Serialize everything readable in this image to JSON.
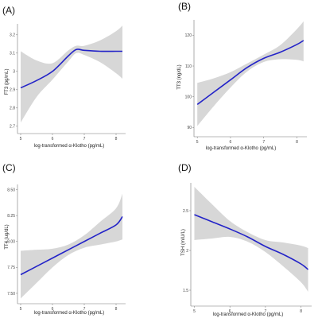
{
  "chart_data": [
    {
      "type": "line",
      "panel": "(A)",
      "xlabel": "log-transformed α-Klotho (pg/mL)",
      "ylabel": "FT3 (pg/mL)",
      "x_ticks": [
        5,
        6,
        7,
        8
      ],
      "y_ticks": [
        2.7,
        2.8,
        2.9,
        3.0,
        3.1,
        3.2
      ],
      "xlim": [
        4.9,
        8.3
      ],
      "ylim": [
        2.66,
        3.26
      ],
      "series": [
        {
          "x": [
            5.0,
            5.5,
            6.0,
            6.5,
            6.75,
            7.0,
            7.5,
            8.0,
            8.2
          ],
          "y": [
            2.91,
            2.95,
            3.0,
            3.085,
            3.12,
            3.115,
            3.11,
            3.11,
            3.11
          ],
          "lower": [
            2.72,
            2.86,
            2.955,
            3.055,
            3.1,
            3.09,
            3.05,
            2.99,
            2.96
          ],
          "upper": [
            3.11,
            3.06,
            3.045,
            3.115,
            3.14,
            3.14,
            3.17,
            3.22,
            3.25
          ]
        }
      ],
      "color": "#2323c8",
      "band_color": "#c9c9c9"
    },
    {
      "type": "line",
      "panel": "(B)",
      "xlabel": "log-transformed α-Klotho (pg/mL)",
      "ylabel": "TT3 (ng/dL)",
      "x_ticks": [
        5,
        6,
        7,
        8
      ],
      "y_ticks": [
        90,
        100,
        110,
        120
      ],
      "xlim": [
        4.9,
        8.3
      ],
      "ylim": [
        87,
        125
      ],
      "series": [
        {
          "x": [
            5.0,
            5.5,
            6.0,
            6.5,
            7.0,
            7.5,
            8.0,
            8.2
          ],
          "y": [
            97.5,
            101.5,
            105.5,
            109.5,
            112.5,
            114.5,
            117.0,
            118.3
          ],
          "lower": [
            90.5,
            97.0,
            103.0,
            108.2,
            111.3,
            112.2,
            112.0,
            111.5
          ],
          "upper": [
            104.5,
            106.0,
            108.0,
            110.8,
            113.7,
            116.8,
            122.0,
            124.5
          ]
        }
      ],
      "color": "#2323c8",
      "band_color": "#c9c9c9"
    },
    {
      "type": "line",
      "panel": "(C)",
      "xlabel": "log-transformed α-Klotho (pg/mL)",
      "ylabel": "TT4 (ug/dL)",
      "x_ticks": [
        5,
        6,
        7,
        8
      ],
      "y_ticks": [
        7.5,
        7.75,
        8.0,
        8.25,
        8.5
      ],
      "y_tick_labels": [
        "7.50",
        "7.75",
        "8.00",
        "8.25",
        "8.50"
      ],
      "xlim": [
        4.9,
        8.3
      ],
      "ylim": [
        7.4,
        8.55
      ],
      "series": [
        {
          "x": [
            5.0,
            5.5,
            6.0,
            6.5,
            7.0,
            7.5,
            8.0,
            8.2
          ],
          "y": [
            7.68,
            7.76,
            7.84,
            7.92,
            8.0,
            8.08,
            8.16,
            8.24
          ],
          "lower": [
            7.45,
            7.6,
            7.75,
            7.87,
            7.94,
            7.97,
            8.0,
            8.02
          ],
          "upper": [
            7.91,
            7.92,
            7.93,
            7.97,
            8.06,
            8.19,
            8.32,
            8.46
          ]
        }
      ],
      "color": "#2323c8",
      "band_color": "#c9c9c9"
    },
    {
      "type": "line",
      "panel": "(D)",
      "xlabel": "log-transformed α-Klotho (pg/mL)",
      "ylabel": "TSH (mIU/L)",
      "x_ticks": [
        5,
        6,
        7,
        8
      ],
      "y_ticks": [
        1.5,
        2.0,
        2.5
      ],
      "xlim": [
        4.9,
        8.3
      ],
      "ylim": [
        1.3,
        2.85
      ],
      "series": [
        {
          "x": [
            5.0,
            5.5,
            6.0,
            6.5,
            7.0,
            7.5,
            8.0,
            8.2
          ],
          "y": [
            2.45,
            2.36,
            2.27,
            2.17,
            2.05,
            1.95,
            1.83,
            1.76
          ],
          "lower": [
            2.13,
            2.15,
            2.17,
            2.11,
            1.98,
            1.8,
            1.6,
            1.48
          ],
          "upper": [
            2.8,
            2.58,
            2.37,
            2.23,
            2.13,
            2.1,
            2.06,
            2.03
          ]
        }
      ],
      "color": "#2323c8",
      "band_color": "#c9c9c9"
    }
  ]
}
